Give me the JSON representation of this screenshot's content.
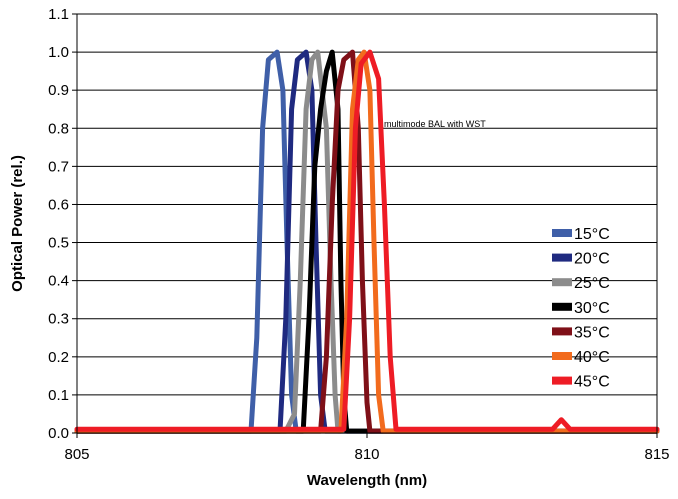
{
  "chart_data": {
    "type": "line",
    "title": "",
    "xlabel": "Wavelength (nm)",
    "ylabel": "Optical Power (rel.)",
    "xlim": [
      805,
      815
    ],
    "ylim": [
      0,
      1.1
    ],
    "x_ticks": [
      "805",
      "810",
      "815"
    ],
    "x_tick_values": [
      805,
      810,
      815
    ],
    "y_ticks": [
      "0.0",
      "0.1",
      "0.2",
      "0.3",
      "0.4",
      "0.5",
      "0.6",
      "0.7",
      "0.8",
      "0.9",
      "1.0",
      "1.1"
    ],
    "y_tick_values": [
      0,
      0.1,
      0.2,
      0.3,
      0.4,
      0.5,
      0.6,
      0.7,
      0.8,
      0.9,
      1.0,
      1.1
    ],
    "grid": "horizontal",
    "legend_position": "right",
    "annotation": "multimode BAL with WST",
    "series": [
      {
        "name": "15°C",
        "color": "#3f5fa8",
        "points": [
          [
            805,
            0.005
          ],
          [
            808.0,
            0.005
          ],
          [
            808.1,
            0.25
          ],
          [
            808.2,
            0.8
          ],
          [
            808.3,
            0.98
          ],
          [
            808.45,
            1.0
          ],
          [
            808.55,
            0.9
          ],
          [
            808.62,
            0.5
          ],
          [
            808.7,
            0.1
          ],
          [
            808.78,
            0.005
          ],
          [
            815,
            0.005
          ]
        ]
      },
      {
        "name": "20°C",
        "color": "#1f2a80",
        "points": [
          [
            805,
            0.005
          ],
          [
            808.5,
            0.005
          ],
          [
            808.6,
            0.3
          ],
          [
            808.7,
            0.85
          ],
          [
            808.8,
            0.98
          ],
          [
            808.95,
            1.0
          ],
          [
            809.05,
            0.9
          ],
          [
            809.12,
            0.5
          ],
          [
            809.2,
            0.1
          ],
          [
            809.28,
            0.005
          ],
          [
            815,
            0.005
          ]
        ]
      },
      {
        "name": "25°C",
        "color": "#8c8c8c",
        "points": [
          [
            805,
            0.005
          ],
          [
            808.6,
            0.005
          ],
          [
            808.75,
            0.05
          ],
          [
            808.85,
            0.4
          ],
          [
            808.95,
            0.85
          ],
          [
            809.05,
            0.98
          ],
          [
            809.15,
            1.0
          ],
          [
            809.3,
            0.8
          ],
          [
            809.38,
            0.4
          ],
          [
            809.45,
            0.1
          ],
          [
            809.5,
            0.005
          ],
          [
            815,
            0.005
          ]
        ]
      },
      {
        "name": "30°C",
        "color": "#000000",
        "points": [
          [
            805,
            0.005
          ],
          [
            808.9,
            0.005
          ],
          [
            809.0,
            0.3
          ],
          [
            809.1,
            0.7
          ],
          [
            809.2,
            0.85
          ],
          [
            809.3,
            0.95
          ],
          [
            809.4,
            1.0
          ],
          [
            809.5,
            0.85
          ],
          [
            809.55,
            0.4
          ],
          [
            809.6,
            0.1
          ],
          [
            809.65,
            0.005
          ],
          [
            815,
            0.005
          ]
        ]
      },
      {
        "name": "35°C",
        "color": "#7f1018",
        "points": [
          [
            805,
            0.005
          ],
          [
            809.2,
            0.005
          ],
          [
            809.3,
            0.2
          ],
          [
            809.4,
            0.6
          ],
          [
            809.5,
            0.9
          ],
          [
            809.6,
            0.98
          ],
          [
            809.75,
            1.0
          ],
          [
            809.85,
            0.8
          ],
          [
            809.92,
            0.4
          ],
          [
            810.0,
            0.08
          ],
          [
            810.05,
            0.005
          ],
          [
            815,
            0.005
          ]
        ]
      },
      {
        "name": "40°C",
        "color": "#f26b1d",
        "points": [
          [
            805,
            0.005
          ],
          [
            809.55,
            0.005
          ],
          [
            809.65,
            0.3
          ],
          [
            809.75,
            0.85
          ],
          [
            809.85,
            0.98
          ],
          [
            809.95,
            1.0
          ],
          [
            810.05,
            0.9
          ],
          [
            810.12,
            0.5
          ],
          [
            810.2,
            0.1
          ],
          [
            810.28,
            0.005
          ],
          [
            815,
            0.005
          ]
        ]
      },
      {
        "name": "45°C",
        "color": "#ee1c25",
        "points": [
          [
            805,
            0.01
          ],
          [
            809.6,
            0.01
          ],
          [
            809.7,
            0.3
          ],
          [
            809.8,
            0.8
          ],
          [
            809.9,
            0.97
          ],
          [
            810.05,
            1.0
          ],
          [
            810.2,
            0.93
          ],
          [
            810.3,
            0.6
          ],
          [
            810.4,
            0.2
          ],
          [
            810.5,
            0.01
          ],
          [
            813.2,
            0.01
          ],
          [
            813.35,
            0.035
          ],
          [
            813.5,
            0.01
          ],
          [
            815,
            0.01
          ]
        ]
      }
    ]
  }
}
